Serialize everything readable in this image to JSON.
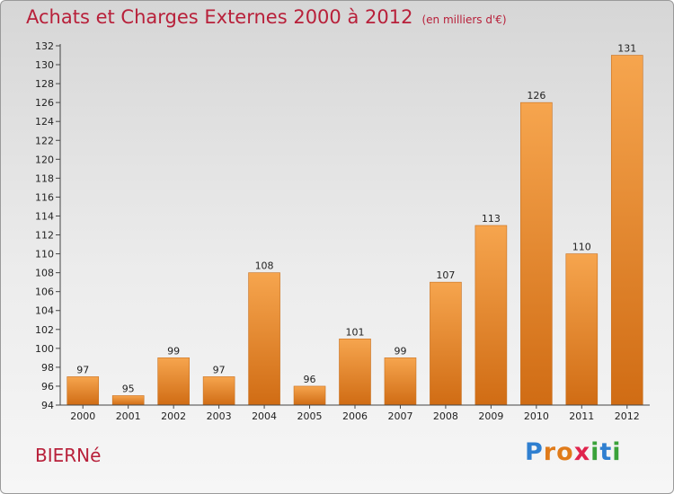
{
  "header": {
    "title": "Achats et Charges Externes 2000 à 2012",
    "unit": "(en milliers d'€)"
  },
  "footer": {
    "place": "BIERNé",
    "logo_letters": [
      "P",
      "r",
      "o",
      "x",
      "i",
      "t",
      "i"
    ]
  },
  "colors": {
    "title": "#b8203a",
    "bar_top": "#f6a54e",
    "bar_bottom": "#d06c14",
    "logo_letters": [
      "#2f7fd0",
      "#e07b1a",
      "#e07b1a",
      "#e0244d",
      "#3aa23a",
      "#2f7fd0",
      "#3aa23a"
    ]
  },
  "chart_data": {
    "type": "bar",
    "title": "Achats et Charges Externes 2000 à 2012",
    "categories": [
      "2000",
      "2001",
      "2002",
      "2003",
      "2004",
      "2005",
      "2006",
      "2007",
      "2008",
      "2009",
      "2010",
      "2011",
      "2012"
    ],
    "values": [
      97,
      95,
      99,
      97,
      108,
      96,
      101,
      99,
      107,
      113,
      126,
      110,
      131
    ],
    "ylim": [
      94,
      132
    ],
    "ytick_step": 2,
    "grid": false,
    "xlabel": "",
    "ylabel": ""
  }
}
